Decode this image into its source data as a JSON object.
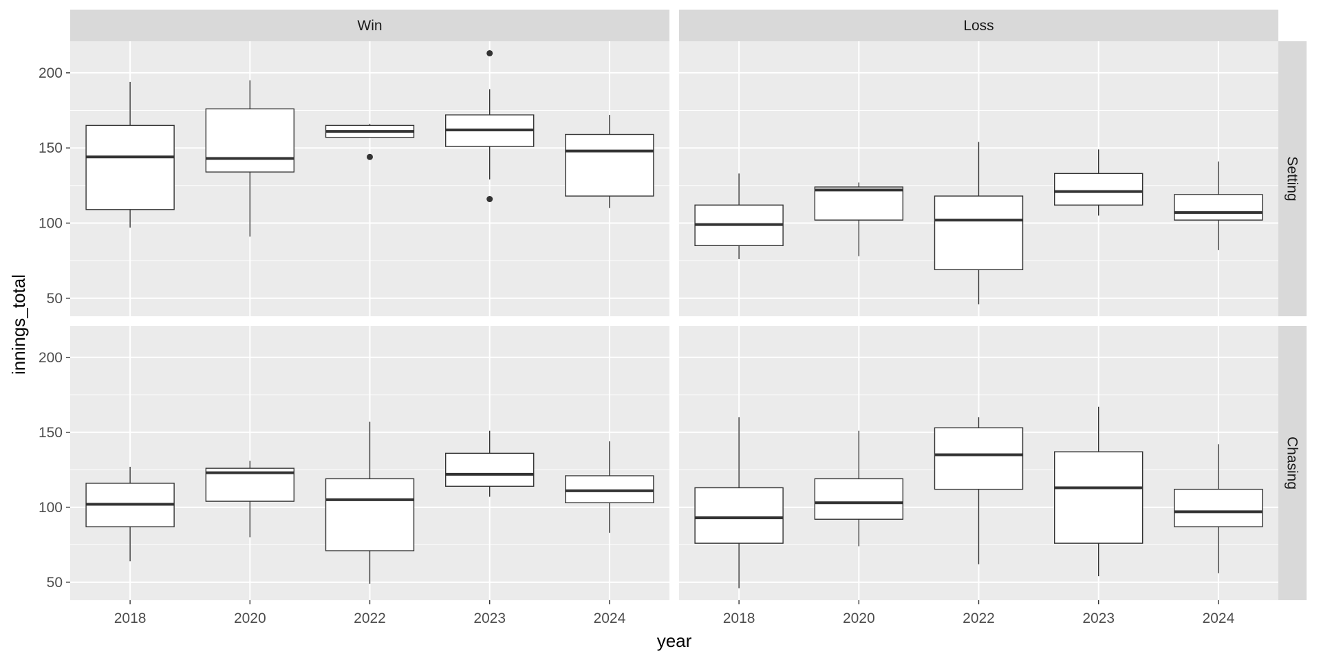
{
  "chart_data": {
    "type": "box",
    "xlabel": "year",
    "ylabel": "innings_total",
    "x_categories": [
      "2018",
      "2020",
      "2022",
      "2023",
      "2024"
    ],
    "y_ticks": [
      50,
      100,
      150,
      200
    ],
    "ylim": [
      38,
      221
    ],
    "grid": true,
    "facet_columns": [
      "Win",
      "Loss"
    ],
    "facet_rows": [
      "Setting",
      "Chasing"
    ],
    "panels": [
      {
        "column": "Win",
        "row": "Setting",
        "boxes": [
          {
            "year": "2018",
            "lower_whisker": 97,
            "q1": 109,
            "median": 144,
            "q3": 165,
            "upper_whisker": 194,
            "outliers": []
          },
          {
            "year": "2020",
            "lower_whisker": 91,
            "q1": 134,
            "median": 143,
            "q3": 176,
            "upper_whisker": 195,
            "outliers": []
          },
          {
            "year": "2022",
            "lower_whisker": 157,
            "q1": 157,
            "median": 161,
            "q3": 165,
            "upper_whisker": 166,
            "outliers": [
              144
            ]
          },
          {
            "year": "2023",
            "lower_whisker": 129,
            "q1": 151,
            "median": 162,
            "q3": 172,
            "upper_whisker": 189,
            "outliers": [
              213,
              116
            ]
          },
          {
            "year": "2024",
            "lower_whisker": 110,
            "q1": 118,
            "median": 148,
            "q3": 159,
            "upper_whisker": 172,
            "outliers": []
          }
        ]
      },
      {
        "column": "Loss",
        "row": "Setting",
        "boxes": [
          {
            "year": "2018",
            "lower_whisker": 76,
            "q1": 85,
            "median": 99,
            "q3": 112,
            "upper_whisker": 133,
            "outliers": []
          },
          {
            "year": "2020",
            "lower_whisker": 78,
            "q1": 102,
            "median": 122,
            "q3": 124,
            "upper_whisker": 127,
            "outliers": []
          },
          {
            "year": "2022",
            "lower_whisker": 46,
            "q1": 69,
            "median": 102,
            "q3": 118,
            "upper_whisker": 154,
            "outliers": []
          },
          {
            "year": "2023",
            "lower_whisker": 105,
            "q1": 112,
            "median": 121,
            "q3": 133,
            "upper_whisker": 149,
            "outliers": []
          },
          {
            "year": "2024",
            "lower_whisker": 82,
            "q1": 102,
            "median": 107,
            "q3": 119,
            "upper_whisker": 141,
            "outliers": []
          }
        ]
      },
      {
        "column": "Win",
        "row": "Chasing",
        "boxes": [
          {
            "year": "2018",
            "lower_whisker": 64,
            "q1": 87,
            "median": 102,
            "q3": 116,
            "upper_whisker": 127,
            "outliers": []
          },
          {
            "year": "2020",
            "lower_whisker": 80,
            "q1": 104,
            "median": 123,
            "q3": 126,
            "upper_whisker": 131,
            "outliers": []
          },
          {
            "year": "2022",
            "lower_whisker": 49,
            "q1": 71,
            "median": 105,
            "q3": 119,
            "upper_whisker": 157,
            "outliers": []
          },
          {
            "year": "2023",
            "lower_whisker": 107,
            "q1": 114,
            "median": 122,
            "q3": 136,
            "upper_whisker": 151,
            "outliers": []
          },
          {
            "year": "2024",
            "lower_whisker": 83,
            "q1": 103,
            "median": 111,
            "q3": 121,
            "upper_whisker": 144,
            "outliers": []
          }
        ]
      },
      {
        "column": "Loss",
        "row": "Chasing",
        "boxes": [
          {
            "year": "2018",
            "lower_whisker": 46,
            "q1": 76,
            "median": 93,
            "q3": 113,
            "upper_whisker": 160,
            "outliers": []
          },
          {
            "year": "2020",
            "lower_whisker": 74,
            "q1": 92,
            "median": 103,
            "q3": 119,
            "upper_whisker": 151,
            "outliers": []
          },
          {
            "year": "2022",
            "lower_whisker": 62,
            "q1": 112,
            "median": 135,
            "q3": 153,
            "upper_whisker": 160,
            "outliers": []
          },
          {
            "year": "2023",
            "lower_whisker": 54,
            "q1": 76,
            "median": 113,
            "q3": 137,
            "upper_whisker": 167,
            "outliers": []
          },
          {
            "year": "2024",
            "lower_whisker": 56,
            "q1": 87,
            "median": 97,
            "q3": 112,
            "upper_whisker": 142,
            "outliers": []
          }
        ]
      }
    ]
  },
  "colors": {
    "panel_background": "#ebebeb",
    "strip_background": "#d9d9d9",
    "grid_major": "#ffffff",
    "box_fill": "#ffffff",
    "box_line": "#333333",
    "outlier": "#333333"
  }
}
